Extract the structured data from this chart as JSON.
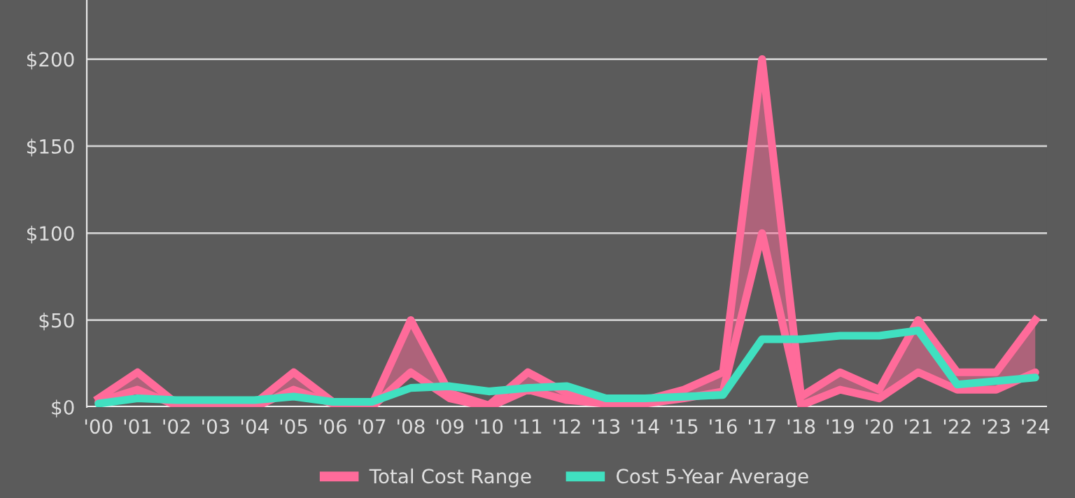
{
  "chart_data": {
    "type": "line",
    "categories": [
      "'00",
      "'01",
      "'02",
      "'03",
      "'04",
      "'05",
      "'06",
      "'07",
      "'08",
      "'09",
      "'10",
      "'11",
      "'12",
      "'13",
      "'14",
      "'15",
      "'16",
      "'17",
      "'18",
      "'19",
      "'20",
      "'21",
      "'22",
      "'23",
      "'24"
    ],
    "series": [
      {
        "color": "#ff6b9a",
        "values": [
          3,
          10,
          1,
          1,
          0,
          10,
          2,
          0,
          20,
          5,
          0,
          10,
          4,
          2,
          2,
          5,
          9,
          100,
          1,
          10,
          5,
          20,
          10,
          10,
          20
        ]
      },
      {
        "name": "Total Cost Range",
        "type": "area",
        "color": "#ff6b9a",
        "values": [
          5,
          20,
          2,
          2,
          2,
          20,
          3,
          1,
          50,
          8,
          1,
          20,
          8,
          3,
          4,
          10,
          20,
          200,
          6,
          20,
          10,
          50,
          20,
          20,
          50
        ]
      },
      {
        "name": "Cost 5-Year Average",
        "type": "line",
        "color": "#40e0c0",
        "values": [
          2,
          5,
          4,
          4,
          4,
          6,
          3,
          3,
          11,
          12,
          9,
          11,
          12,
          5,
          5,
          6,
          7,
          39,
          39,
          41,
          41,
          44,
          13,
          15,
          17
        ]
      }
    ],
    "ylim": [
      0,
      234
    ],
    "yticks": [
      {
        "value": 0,
        "label": "$0"
      },
      {
        "value": 50,
        "label": "$50"
      },
      {
        "value": 100,
        "label": "$100"
      },
      {
        "value": 150,
        "label": "$150"
      },
      {
        "value": 200,
        "label": "$200"
      }
    ],
    "grid": "y",
    "legend": "bottom"
  }
}
